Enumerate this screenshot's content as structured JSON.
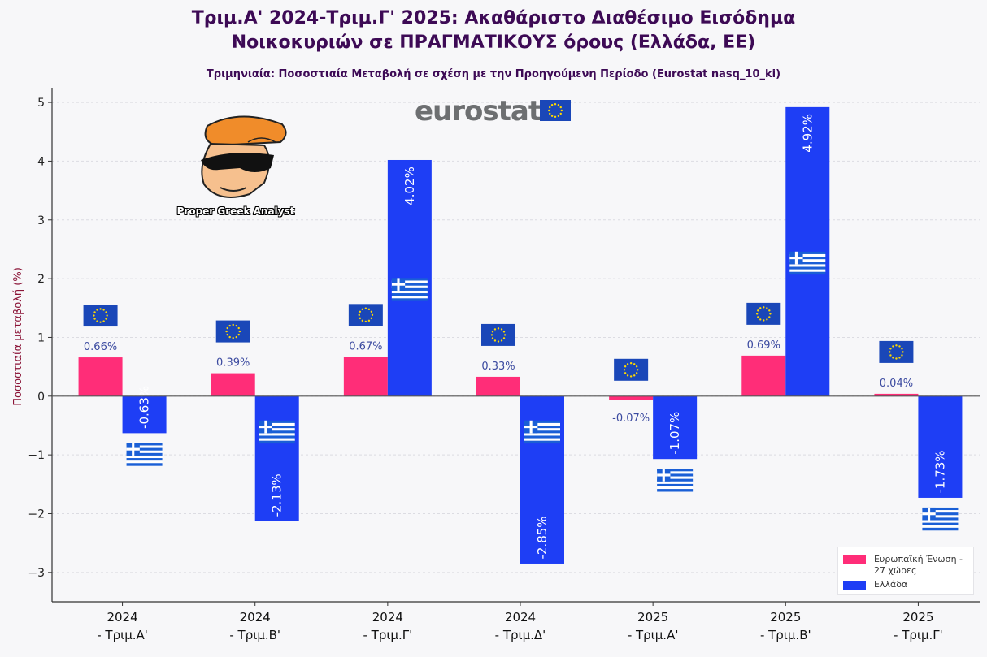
{
  "title_line1": "Τριμ.Α' 2024-Τριμ.Γ' 2025: Ακαθάριστο Διαθέσιμο Εισόδημα",
  "title_line2": "Νοικοκυριών σε ΠΡΑΓΜΑΤΙΚΟΥΣ όρους (Ελλάδα, ΕΕ)",
  "subtitle": "Τριμηνιαία: Ποσοστιαία Μεταβολή σε σχέση με την Προηγούμενη Περίοδο (Eurostat nasq_10_ki)",
  "logo_text": "eurostat",
  "mascot_caption": "Proper Greek Analyst",
  "colors": {
    "eu": "#ff2d78",
    "greece": "#1e3ef5",
    "title": "#3d0a55",
    "flag_eu": "#1a47b8",
    "flag_eu_star": "#ffd800",
    "flag_gr": "#1a5fd6"
  },
  "chart_data": {
    "type": "bar",
    "categories": [
      [
        "2024",
        "- Τριμ.Α'"
      ],
      [
        "2024",
        "- Τριμ.Β'"
      ],
      [
        "2024",
        "- Τριμ.Γ'"
      ],
      [
        "2024",
        "- Τριμ.Δ'"
      ],
      [
        "2025",
        "- Τριμ.Α'"
      ],
      [
        "2025",
        "- Τριμ.Β'"
      ],
      [
        "2025",
        "- Τριμ.Γ'"
      ]
    ],
    "series": [
      {
        "name": "Ευρωπαϊκή Ένωση - 27 χώρες",
        "color": "#ff2d78",
        "values": [
          0.66,
          0.39,
          0.67,
          0.33,
          -0.07,
          0.69,
          0.04
        ],
        "labels": [
          "0.66%",
          "0.39%",
          "0.67%",
          "0.33%",
          "-0.07%",
          "0.69%",
          "0.04%"
        ]
      },
      {
        "name": "Ελλάδα",
        "color": "#1e3ef5",
        "values": [
          -0.63,
          -2.13,
          4.02,
          -2.85,
          -1.07,
          4.92,
          -1.73
        ],
        "labels": [
          "-0.63%",
          "-2.13%",
          "4.02%",
          "-2.85%",
          "-1.07%",
          "4.92%",
          "-1.73%"
        ]
      }
    ],
    "ylabel": "Ποσοστιαία μεταβολή (%)",
    "xlabel": "",
    "ylim": [
      -3.5,
      5.25
    ],
    "yticks": [
      -3,
      -2,
      -1,
      0,
      1,
      2,
      3,
      4,
      5
    ],
    "ytick_labels": [
      "−3",
      "−2",
      "−1",
      "0",
      "1",
      "2",
      "3",
      "4",
      "5"
    ],
    "grid": true,
    "legend_position": "bottom-right"
  }
}
